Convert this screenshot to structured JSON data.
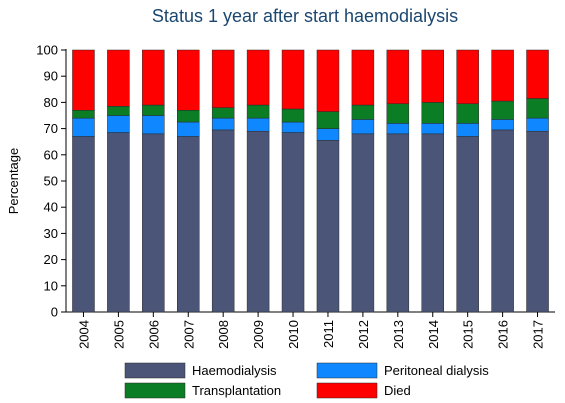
{
  "chart_data": {
    "type": "stacked_bar",
    "title": "Status 1 year after start haemodialysis",
    "y_label": "Percentage",
    "categories": [
      "2004",
      "2005",
      "2006",
      "2007",
      "2008",
      "2009",
      "2010",
      "2011",
      "2012",
      "2013",
      "2014",
      "2015",
      "2016",
      "2017"
    ],
    "series": [
      {
        "name": "Haemodialysis",
        "color": "#4a5578",
        "values": [
          67,
          68.5,
          68,
          67,
          69.5,
          69,
          68.5,
          65.5,
          68,
          68,
          68,
          67,
          69.5,
          69
        ]
      },
      {
        "name": "Peritoneal dialysis",
        "color": "#0f87ff",
        "values": [
          7,
          6.5,
          7,
          5.5,
          4.5,
          5,
          4,
          4.5,
          5.5,
          4,
          4,
          5,
          4,
          5
        ]
      },
      {
        "name": "Transplantation",
        "color": "#0a7d25",
        "values": [
          3,
          3.5,
          4,
          4.5,
          4,
          5,
          5,
          6.5,
          5.5,
          7.5,
          8,
          7.5,
          7,
          7.5
        ]
      },
      {
        "name": "Died",
        "color": "#ff0000",
        "values": [
          23,
          21.5,
          21,
          23,
          22,
          21,
          22.5,
          23.5,
          21,
          20.5,
          20,
          20.5,
          19.5,
          18.5
        ]
      }
    ],
    "ylim": [
      0,
      100
    ],
    "yticks": [
      0,
      10,
      20,
      30,
      40,
      50,
      60,
      70,
      80,
      90,
      100
    ],
    "grid": false
  }
}
